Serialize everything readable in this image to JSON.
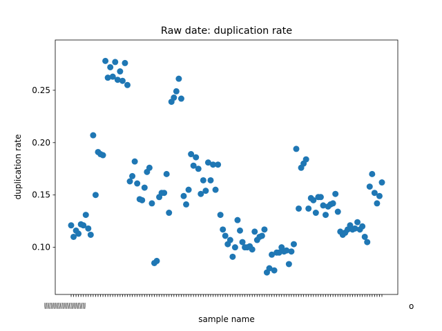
{
  "chart_data": {
    "type": "scatter",
    "title": "Raw date: duplication rate",
    "xlabel": "sample name",
    "ylabel": "duplication rate",
    "ylim": [
      0.055,
      0.298
    ],
    "yticks": [
      0.1,
      0.15,
      0.2,
      0.25
    ],
    "ytick_labels": [
      "0.10",
      "0.15",
      "0.20",
      "0.25"
    ],
    "grid": false,
    "x_tick_label_clutter": "WWWWWWWWWWWWWW",
    "x_tick_label_end": "o",
    "point_color": "#1f77b4",
    "values": [
      0.121,
      0.11,
      0.116,
      0.113,
      0.122,
      0.121,
      0.131,
      0.118,
      0.112,
      0.207,
      0.15,
      0.191,
      0.189,
      0.188,
      0.278,
      0.262,
      0.272,
      0.263,
      0.277,
      0.26,
      0.268,
      0.259,
      0.276,
      0.255,
      0.163,
      0.168,
      0.182,
      0.161,
      0.146,
      0.145,
      0.157,
      0.172,
      0.176,
      0.142,
      0.085,
      0.087,
      0.148,
      0.152,
      0.152,
      0.17,
      0.133,
      0.239,
      0.243,
      0.249,
      0.261,
      0.242,
      0.149,
      0.141,
      0.155,
      0.189,
      0.178,
      0.186,
      0.175,
      0.151,
      0.164,
      0.154,
      0.181,
      0.164,
      0.179,
      0.155,
      0.179,
      0.131,
      0.117,
      0.111,
      0.103,
      0.107,
      0.091,
      0.1,
      0.126,
      0.116,
      0.105,
      0.1,
      0.1,
      0.101,
      0.098,
      0.115,
      0.107,
      0.11,
      0.111,
      0.117,
      0.076,
      0.08,
      0.093,
      0.078,
      0.095,
      0.095,
      0.1,
      0.096,
      0.097,
      0.084,
      0.096,
      0.103,
      0.194,
      0.137,
      0.176,
      0.18,
      0.184,
      0.137,
      0.147,
      0.145,
      0.133,
      0.148,
      0.148,
      0.14,
      0.131,
      0.139,
      0.141,
      0.142,
      0.151,
      0.134,
      0.115,
      0.112,
      0.114,
      0.117,
      0.121,
      0.117,
      0.118,
      0.124,
      0.117,
      0.12,
      0.11,
      0.105,
      0.158,
      0.17,
      0.152,
      0.142,
      0.149,
      0.162
    ]
  }
}
